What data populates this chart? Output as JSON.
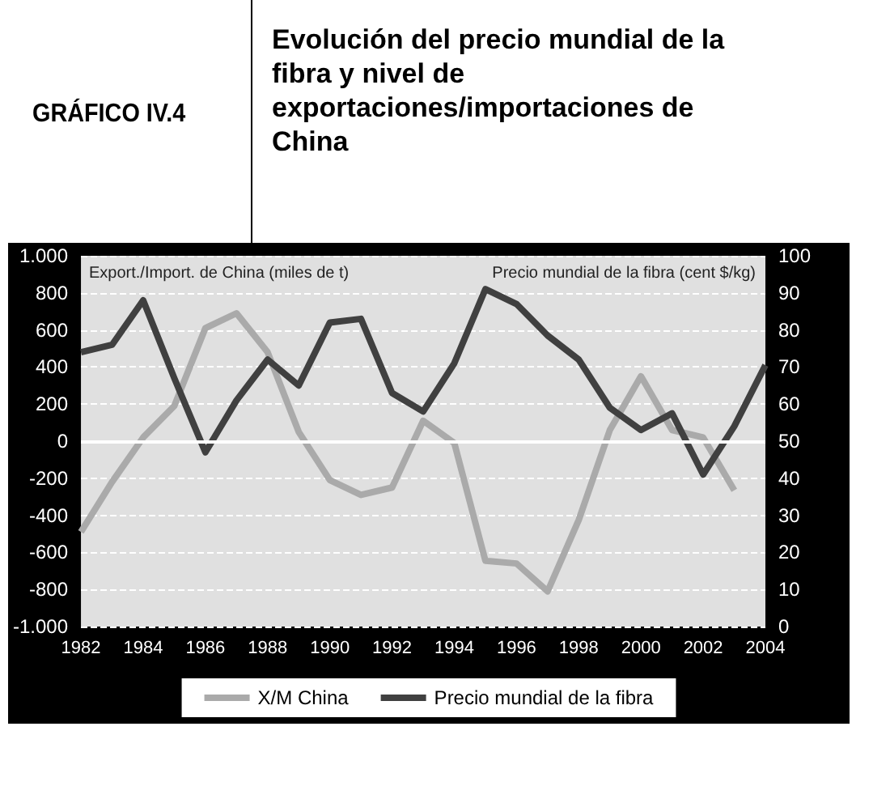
{
  "chart_data": {
    "type": "line",
    "title": "Evolución del precio mundial de la fibra y nivel de exportaciones/importaciones de China",
    "annotations": [
      "GRÁFICO IV.4"
    ],
    "ylabel": "Export./Import. de China (miles de t)",
    "y2label": "Precio mundial de la fibra (cent $/kg)",
    "xlim": [
      1982,
      2004
    ],
    "xticks": [
      1982,
      1984,
      1986,
      1988,
      1990,
      1992,
      1994,
      1996,
      1998,
      2000,
      2002,
      2004
    ],
    "ylim": [
      -1000,
      1000
    ],
    "yticks": [
      {
        "value": -1000,
        "label": "-1.000"
      },
      -800,
      -600,
      -400,
      -200,
      0,
      200,
      400,
      600,
      800,
      {
        "value": 1000,
        "label": "1.000"
      }
    ],
    "y2lim": [
      0,
      100
    ],
    "y2ticks": [
      0,
      10,
      20,
      30,
      40,
      50,
      60,
      70,
      80,
      90,
      100
    ],
    "series": [
      {
        "name": "X/M China",
        "color": "#aaaaaa",
        "x": [
          1982,
          1983,
          1984,
          1985,
          1986,
          1987,
          1988,
          1989,
          1990,
          1991,
          1992,
          1993,
          1994,
          1995,
          1996,
          1997,
          1998,
          1999,
          2000,
          2001,
          2002,
          2003
        ],
        "values": [
          -490,
          -220,
          20,
          190,
          610,
          690,
          480,
          50,
          -210,
          -290,
          -250,
          110,
          -10,
          -645,
          -660,
          -810,
          -425,
          60,
          350,
          60,
          20,
          -265
        ]
      },
      {
        "name": "Precio mundial de la fibra",
        "color": "#404040",
        "axis": "y2",
        "x": [
          1982,
          1983,
          1984,
          1985,
          1986,
          1987,
          1988,
          1989,
          1990,
          1991,
          1992,
          1993,
          1994,
          1995,
          1996,
          1997,
          1998,
          1999,
          2000,
          2001,
          2002,
          2003,
          2004
        ],
        "values": [
          74,
          76,
          88,
          67,
          47,
          61,
          72,
          65,
          82,
          83,
          63,
          58,
          71,
          91,
          87,
          78.5,
          72,
          59,
          53,
          57.5,
          41,
          54,
          70.5
        ]
      }
    ],
    "ref_lines": [
      {
        "axis": "y",
        "value": 0,
        "color": "#ffffff",
        "line_style": "solid"
      }
    ],
    "grid": "y",
    "legend": "bottom",
    "marker": "none",
    "line_style": "solid"
  }
}
